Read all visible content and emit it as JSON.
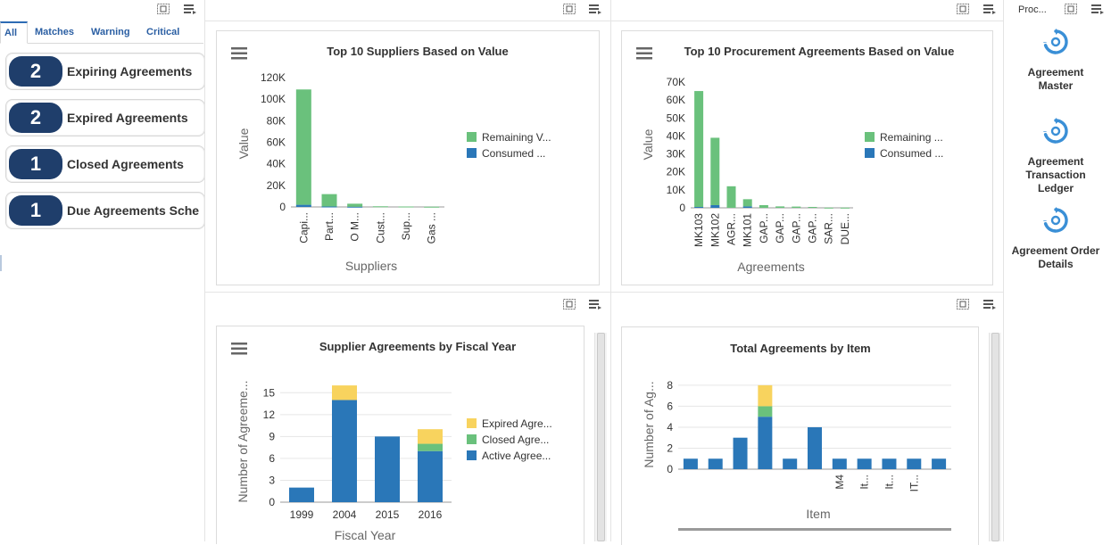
{
  "left": {
    "tabs": [
      "All",
      "Matches",
      "Warning",
      "Critical"
    ],
    "cards": [
      {
        "count": "2",
        "label": "Expiring Agreements"
      },
      {
        "count": "2",
        "label": "Expired Agreements"
      },
      {
        "count": "1",
        "label": "Closed Agreements"
      },
      {
        "count": "1",
        "label": "Due Agreements Sche"
      }
    ]
  },
  "right": {
    "header": "Proc...",
    "links": [
      {
        "lines": [
          "Agreement",
          "Master"
        ]
      },
      {
        "lines": [
          "Agreement",
          "Transaction",
          "Ledger"
        ]
      },
      {
        "lines": [
          "Agreement Order",
          "Details"
        ]
      }
    ]
  },
  "charts": {
    "suppliers": {
      "title": "Top 10 Suppliers Based on Value",
      "chart_data": {
        "type": "bar",
        "stacked": true,
        "title": "Top 10 Suppliers Based on Value",
        "xlabel": "Suppliers",
        "ylabel": "Value",
        "ylim": [
          0,
          120000
        ],
        "yticks": [
          "0",
          "20K",
          "40K",
          "60K",
          "80K",
          "100K",
          "120K"
        ],
        "categories": [
          "Capi...",
          "Part...",
          "O M...",
          "Cust...",
          "Sup...",
          "Gas ..."
        ],
        "series": [
          {
            "name": "Consumed ...",
            "color": "#2a77b8",
            "values": [
              2000,
              400,
              200,
              0,
              0,
              0
            ]
          },
          {
            "name": "Remaining V...",
            "color": "#6ac17c",
            "values": [
              107000,
              11500,
              2800,
              600,
              400,
              200
            ]
          }
        ],
        "legend": "right"
      }
    },
    "agreements": {
      "title": "Top 10 Procurement Agreements Based on Value",
      "chart_data": {
        "type": "bar",
        "stacked": true,
        "title": "Top 10 Procurement Agreements Based on Value",
        "xlabel": "Agreements",
        "ylabel": "Value",
        "ylim": [
          0,
          70000
        ],
        "yticks": [
          "0",
          "10K",
          "20K",
          "30K",
          "40K",
          "50K",
          "60K",
          "70K"
        ],
        "categories": [
          "MK103",
          "MK102",
          "AGR...",
          "MK101",
          "GAP...",
          "GAP...",
          "GAP...",
          "GAP...",
          "SAR...",
          "DUE..."
        ],
        "series": [
          {
            "name": "Consumed ...",
            "color": "#2a77b8",
            "values": [
              500,
              1500,
              0,
              800,
              0,
              0,
              0,
              0,
              0,
              0
            ]
          },
          {
            "name": "Remaining ...",
            "color": "#6ac17c",
            "values": [
              64500,
              37500,
              12000,
              4000,
              1500,
              800,
              700,
              500,
              100,
              100
            ]
          }
        ],
        "legend": "right"
      }
    },
    "fiscal": {
      "title": "Supplier Agreements by Fiscal Year",
      "chart_data": {
        "type": "bar",
        "stacked": true,
        "title": "Supplier Agreements by Fiscal Year",
        "xlabel": "Fiscal Year",
        "ylabel": "Number of Agreeme...",
        "ylim": [
          0,
          16.5
        ],
        "yticks": [
          "0",
          "3",
          "6",
          "9",
          "12",
          "15"
        ],
        "categories": [
          "1999",
          "2004",
          "2015",
          "2016"
        ],
        "series": [
          {
            "name": "Active Agree...",
            "color": "#2a77b8",
            "values": [
              2,
              14,
              9,
              7
            ]
          },
          {
            "name": "Closed Agre...",
            "color": "#6ac17c",
            "values": [
              0,
              0,
              0,
              1
            ]
          },
          {
            "name": "Expired Agre...",
            "color": "#f8d35e",
            "values": [
              0,
              2,
              0,
              2
            ]
          }
        ],
        "legend": "right"
      }
    },
    "items": {
      "title": "Total Agreements by Item",
      "chart_data": {
        "type": "bar",
        "stacked": true,
        "title": "Total Agreements by Item",
        "xlabel": "Item",
        "ylabel": "Number of Ag...",
        "ylim": [
          0,
          8.5
        ],
        "yticks": [
          "0",
          "2",
          "4",
          "6",
          "8"
        ],
        "categories": [
          "",
          "",
          "",
          "",
          "",
          "",
          "M4",
          "It...",
          "It...",
          "IT...",
          ""
        ],
        "series": [
          {
            "name": "",
            "color": "#2a77b8",
            "values": [
              1,
              1,
              3,
              5,
              1,
              4,
              1,
              1,
              1,
              1,
              1
            ]
          },
          {
            "name": "",
            "color": "#6ac17c",
            "values": [
              0,
              0,
              0,
              1,
              0,
              0,
              0,
              0,
              0,
              0,
              0
            ]
          },
          {
            "name": "",
            "color": "#f8d35e",
            "values": [
              0,
              0,
              0,
              2,
              0,
              0,
              0,
              0,
              0,
              0,
              0
            ]
          }
        ]
      }
    }
  }
}
